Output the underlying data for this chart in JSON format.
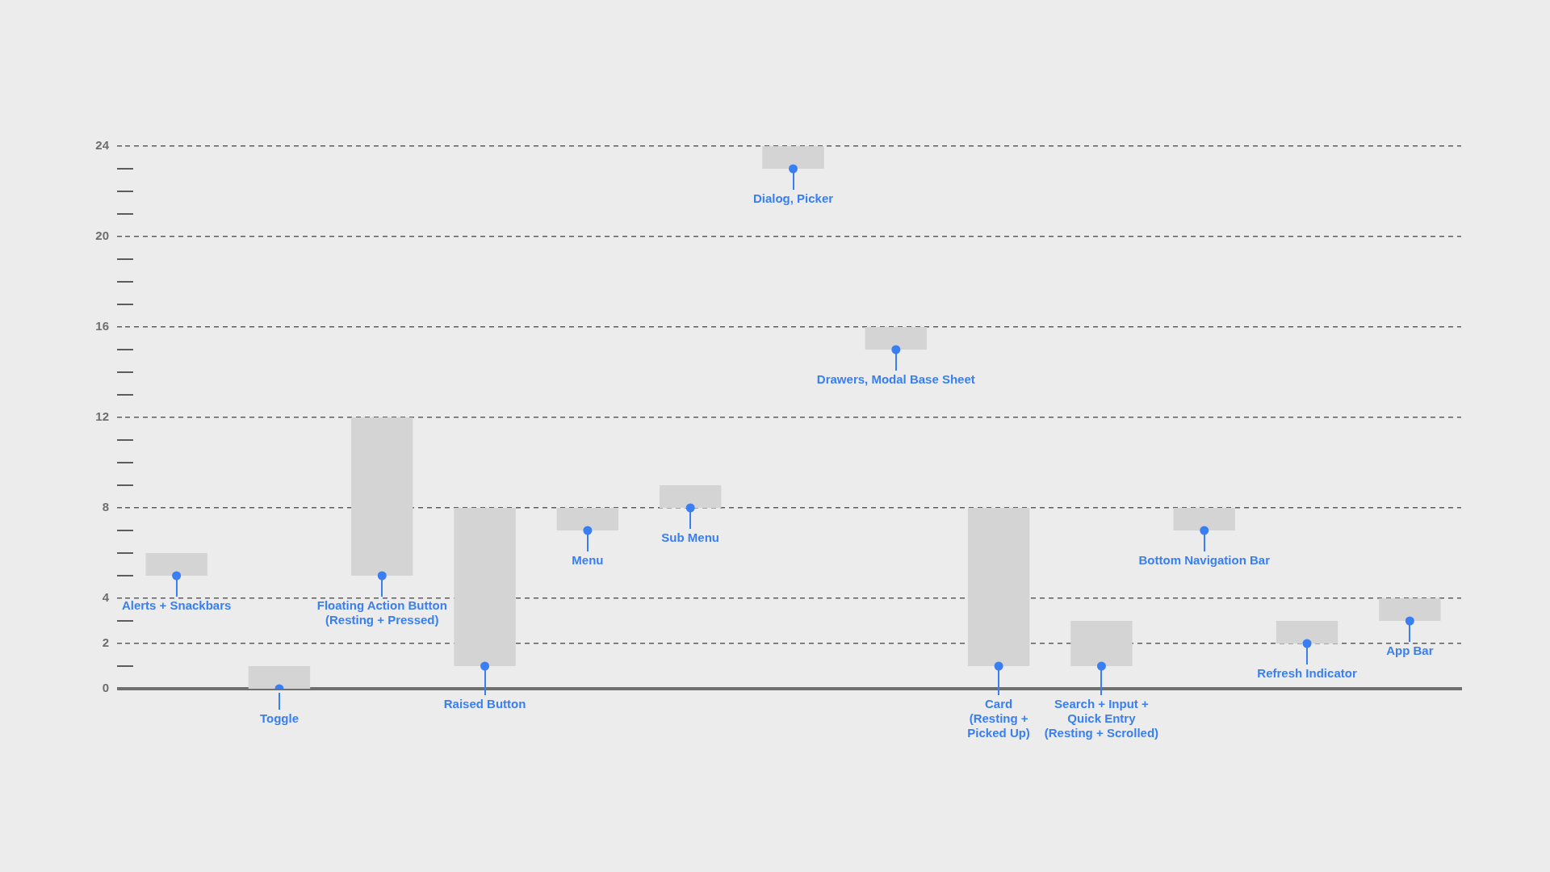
{
  "chart_data": {
    "type": "bar",
    "categories": [
      "Alerts + Snackbars",
      "Toggle",
      "Floating Action Button\n(Resting + Pressed)",
      "Raised Button",
      "Menu",
      "Sub Menu",
      "Dialog, Picker",
      "Drawers, Modal Base Sheet",
      "Card\n(Resting + Picked Up)",
      "Search + Input + Quick Entry\n(Resting + Scrolled)",
      "Bottom Navigation Bar",
      "Refresh Indicator",
      "App Bar"
    ],
    "series": [
      {
        "type": "bar",
        "color": "#d4d4d4",
        "base": [
          5,
          0,
          5,
          1,
          7,
          8,
          23,
          15,
          1,
          1,
          7,
          2,
          3
        ],
        "values": [
          1,
          1,
          7,
          7,
          1,
          1,
          1,
          1,
          7,
          2,
          1,
          1,
          1
        ]
      },
      {
        "type": "scatter",
        "color": "#3a7ff2",
        "x": [
          "Alerts + Snackbars",
          "Toggle",
          "Floating Action Button\n(Resting + Pressed)",
          "Raised Button",
          "Menu",
          "Sub Menu",
          "Dialog, Picker",
          "Drawers, Modal Base Sheet",
          "Card\n(Resting + Picked Up)",
          "Search + Input + Quick Entry\n(Resting + Scrolled)",
          "Bottom Navigation Bar",
          "Refresh Indicator",
          "App Bar"
        ],
        "values": [
          5,
          0,
          5,
          1,
          7,
          8,
          23,
          15,
          1,
          1,
          7,
          2,
          3
        ]
      }
    ],
    "marker": "circle",
    "ylim": [
      0,
      24
    ],
    "yticks": [
      0,
      {
        "value": 1,
        "label": null
      },
      2,
      {
        "value": 3,
        "label": null
      },
      4,
      {
        "value": 5,
        "label": null
      },
      {
        "value": 6,
        "label": null
      },
      {
        "value": 7,
        "label": null
      },
      8,
      {
        "value": 9,
        "label": null
      },
      {
        "value": 10,
        "label": null
      },
      {
        "value": 11,
        "label": null
      },
      12,
      {
        "value": 13,
        "label": null
      },
      {
        "value": 14,
        "label": null
      },
      {
        "value": 15,
        "label": null
      },
      16,
      {
        "value": 17,
        "label": null
      },
      {
        "value": 18,
        "label": null
      },
      {
        "value": 19,
        "label": null
      },
      20,
      {
        "value": 21,
        "label": null
      },
      {
        "value": 22,
        "label": null
      },
      {
        "value": 23,
        "label": null
      },
      24
    ],
    "grid": "y"
  }
}
